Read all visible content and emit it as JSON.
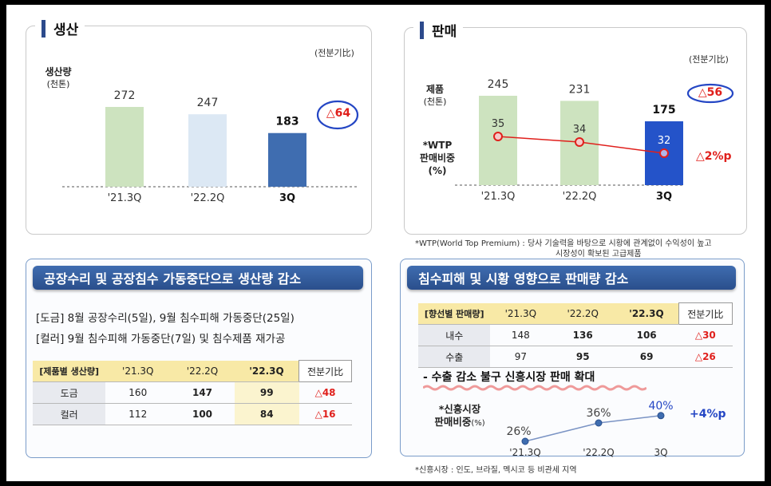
{
  "production": {
    "title": "생산",
    "unit_note": "(전분기比)",
    "ylabel": "생산량",
    "ylabel_unit": "(천톤)",
    "delta": "△64"
  },
  "sales": {
    "title": "판매",
    "unit_note": "(전분기比)",
    "ylabel": "제품",
    "ylabel_unit": "(천톤)",
    "wtp_label_1": "*WTP",
    "wtp_label_2": "판매비중",
    "wtp_label_3": "(%)",
    "delta": "△56",
    "wtp_delta": "△2%p",
    "footnote_1": "*WTP(World Top Premium) : 당사 기술력을 바탕으로 시황에 관계없이 수익성이 높고",
    "footnote_2": "시장성이 확보된 고급제품"
  },
  "chart_data": [
    {
      "type": "bar",
      "categories": [
        "'21.3Q",
        "'22.2Q",
        "3Q"
      ],
      "values": [
        272,
        247,
        183
      ],
      "ylabel": "생산량 (천톤)",
      "colors": [
        "#cde3bf",
        "#dce8f4",
        "#3f6db0"
      ]
    },
    {
      "type": "bar",
      "categories": [
        "'21.3Q",
        "'22.2Q",
        "3Q"
      ],
      "values": [
        245,
        231,
        175
      ],
      "ylabel": "제품 (천톤)",
      "colors": [
        "#cde3bf",
        "#cde3bf",
        "#2453c9"
      ],
      "overlay_line": {
        "label": "*WTP 판매비중 (%)",
        "values": [
          35,
          34,
          32
        ],
        "color": "#e0201c"
      }
    },
    {
      "type": "line",
      "categories": [
        "'21.3Q",
        "'22.2Q",
        "3Q"
      ],
      "values": [
        26,
        36,
        40
      ],
      "ylabel": "*신흥시장 판매비중(%)",
      "delta": "+4%p",
      "color": "#7a93c4"
    }
  ],
  "production_box": {
    "header": "공장수리 및 공장침수 가동중단으로 생산량 감소",
    "bullet_1": "[도금] 8월 공장수리(5일), 9월 침수피해 가동중단(25일)",
    "bullet_2": "[컬러] 9월 침수피해 가동중단(7일) 및 침수제품 재가공",
    "table": {
      "header": [
        "[제품별 생산량]",
        "'21.3Q",
        "'22.2Q",
        "'22.3Q",
        "전분기比"
      ],
      "rows": [
        [
          "도금",
          "160",
          "147",
          "99",
          "△48"
        ],
        [
          "컬러",
          "112",
          "100",
          "84",
          "△16"
        ]
      ]
    }
  },
  "sales_box": {
    "header": "침수피해 및 시황 영향으로 판매량 감소",
    "table": {
      "header": [
        "[향선별 판매량]",
        "'21.3Q",
        "'22.2Q",
        "'22.3Q",
        "전분기比"
      ],
      "rows": [
        [
          "내수",
          "148",
          "136",
          "106",
          "△30"
        ],
        [
          "수출",
          "97",
          "95",
          "69",
          "△26"
        ]
      ]
    },
    "subhead": "- 수출 감소 불구 신흥시장 판매 확대",
    "emerging_label_1": "*신흥시장",
    "emerging_label_2": "판매비중",
    "emerging_label_unit": "(%)",
    "footnote": "*신흥시장 : 인도, 브라질, 멕시코 등 비관세 지역"
  }
}
